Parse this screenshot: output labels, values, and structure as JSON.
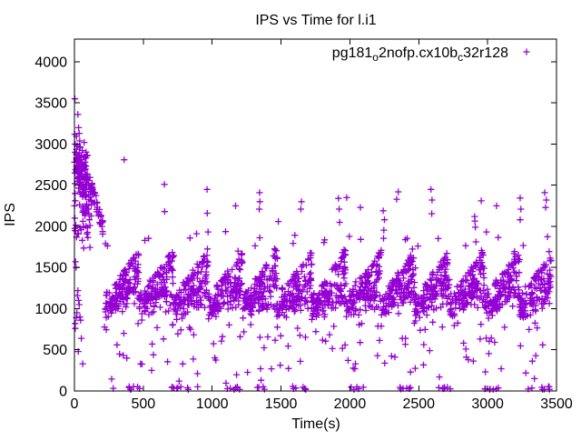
{
  "chart_data": {
    "type": "scatter",
    "title": "IPS vs Time for l.i1",
    "xlabel": "Time(s)",
    "ylabel": "IPS",
    "xlim": [
      0,
      3500
    ],
    "ylim": [
      0,
      4276
    ],
    "xticks": [
      0,
      500,
      1000,
      1500,
      2000,
      2500,
      3000,
      3500
    ],
    "yticks": [
      0,
      500,
      1000,
      1500,
      2000,
      2500,
      3000,
      3500,
      4000
    ],
    "grid": false,
    "background_color": "#ffffff",
    "border_color": "#000000",
    "legend": {
      "position": "top-right"
    },
    "series": [
      {
        "name_plain": "pg181_o2nofp.cx10b_c32r128",
        "name_segments": [
          {
            "text": "pg181",
            "sub": false
          },
          {
            "text": "o",
            "sub": true
          },
          {
            "text": "2nofp.cx10b",
            "sub": false
          },
          {
            "text": "c",
            "sub": true
          },
          {
            "text": "32r128",
            "sub": false
          }
        ],
        "marker": "plus",
        "color": "#9400d3"
      }
    ],
    "pattern": {
      "description": "Initial high burst ~2100-3550 IPS for t=0-215s, then 13 repeating sawtooth cycles (period ~251s) of a dense band rising ~900 to ~1700 IPS, periodic spike columns to ~1900-2800, scattered low outliers 100-800, and groups of near-zero points along the time axis.",
      "seed": 20240613,
      "initial_burst": {
        "axis_column": [
          1950,
          2100,
          2250,
          2400,
          2520,
          2650,
          2780,
          2900,
          3000,
          3120,
          3550
        ],
        "top_strays": [
          [
            25,
            3360
          ],
          [
            30,
            3200
          ],
          [
            15,
            3094
          ],
          [
            38,
            3040
          ],
          [
            20,
            2980
          ],
          [
            34,
            3130
          ]
        ],
        "lobes": [
          {
            "count": 80,
            "t": [
              8,
              95
            ],
            "ips": [
              2350,
              3050
            ]
          },
          {
            "count": 18,
            "t": [
              12,
              40
            ],
            "ips": [
              2600,
              3060
            ]
          },
          {
            "count": 45,
            "t": [
              55,
              150
            ],
            "ips": [
              2050,
              2700
            ]
          },
          {
            "count": 25,
            "t": [
              0,
              120
            ],
            "ips": [
              1700,
              2350
            ]
          }
        ],
        "descent": {
          "count": 30,
          "t": [
            125,
            215
          ],
          "ips_start": 2500,
          "slope": 6.5,
          "spread": 170
        },
        "low_strays": [
          [
            8,
            1570
          ],
          [
            12,
            1500
          ],
          [
            15,
            1870
          ],
          [
            25,
            1220
          ],
          [
            22,
            1160
          ],
          [
            30,
            1100
          ],
          [
            35,
            1050
          ],
          [
            18,
            950
          ],
          [
            40,
            900
          ],
          [
            45,
            860
          ],
          [
            13,
            890
          ],
          [
            6,
            760
          ],
          [
            5,
            820
          ],
          [
            50,
            640
          ],
          [
            28,
            480
          ],
          [
            60,
            330
          ]
        ]
      },
      "cycles": {
        "start": 215,
        "period": 251,
        "count": 13,
        "t_max": 3462,
        "main_count": 115,
        "ridge_count": 18,
        "tail_count": 7,
        "high_count": 2,
        "low_mid_count": 5,
        "low_deep_count": 3,
        "band_low": [
          840,
          120
        ],
        "band_high": [
          1220,
          500,
          1.2
        ],
        "tail_ips": [
          1400,
          330
        ],
        "high_ips": [
          1750,
          200
        ],
        "low_mid_ips": [
          560,
          280
        ],
        "low_deep_ips": [
          170,
          390
        ]
      },
      "spikes": [
        [
          355,
          [
            2810
          ]
        ],
        [
          660,
          [
            2510,
            2180
          ]
        ],
        [
          960,
          [
            2450,
            2160
          ]
        ],
        [
          1170,
          [
            2250
          ]
        ],
        [
          1345,
          [
            2410,
            2300,
            2210
          ]
        ],
        [
          1480,
          [
            2060
          ]
        ],
        [
          1650,
          [
            2300,
            2210
          ]
        ],
        [
          1920,
          [
            2340,
            2210,
            2050
          ]
        ],
        [
          1975,
          [
            2350
          ]
        ],
        [
          2080,
          [
            2230
          ]
        ],
        [
          2248,
          [
            2190,
            2080,
            1955,
            1855
          ]
        ],
        [
          2345,
          [
            2420,
            2330
          ]
        ],
        [
          2590,
          [
            2450,
            2320,
            2155
          ]
        ],
        [
          2907,
          [
            2120,
            2065,
            1990
          ]
        ],
        [
          2950,
          [
            2310
          ]
        ],
        [
          3065,
          [
            2250
          ]
        ],
        [
          3237,
          [
            2345,
            2210,
            2080
          ]
        ],
        [
          3420,
          [
            2410,
            2320,
            2230
          ]
        ]
      ],
      "near_zero_groups": [
        [
          280,
          295,
          1
        ],
        [
          390,
          480,
          7
        ],
        [
          700,
          905,
          9
        ],
        [
          1055,
          1210,
          7
        ],
        [
          1309,
          1404,
          4
        ],
        [
          1580,
          1820,
          7
        ],
        [
          1986,
          2108,
          5
        ],
        [
          2316,
          2470,
          6
        ],
        [
          2600,
          2760,
          7
        ],
        [
          2950,
          3090,
          7
        ],
        [
          3290,
          3450,
          8
        ]
      ],
      "near_zero_ips": [
        15,
        55
      ],
      "low_extra": [
        [
          270,
          145
        ],
        [
          1355,
          130
        ],
        [
          2650,
          170
        ],
        [
          3340,
          150
        ],
        [
          760,
          120
        ],
        [
          1100,
          95
        ],
        [
          480,
          330
        ],
        [
          560,
          250
        ],
        [
          1430,
          270
        ],
        [
          1640,
          360
        ],
        [
          2040,
          330
        ],
        [
          2440,
          230
        ],
        [
          3350,
          430
        ],
        [
          3400,
          560
        ],
        [
          2200,
          430
        ],
        [
          2860,
          380
        ]
      ]
    }
  }
}
